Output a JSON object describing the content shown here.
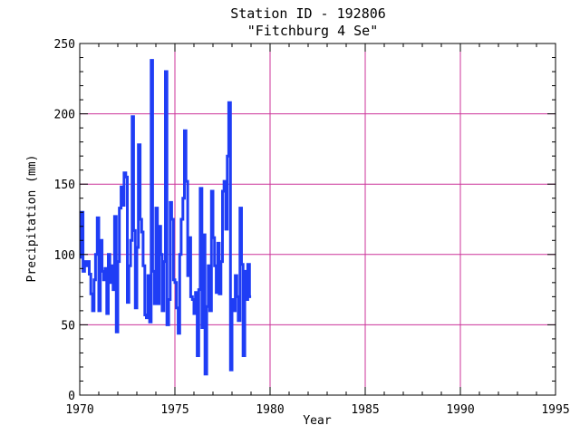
{
  "chart_data": {
    "type": "line",
    "title": "Station ID - 192806",
    "subtitle": "\"Fitchburg 4 Se\"",
    "xlabel": "Year",
    "ylabel": "Precipitation (mm)",
    "xlim": [
      1970,
      1995
    ],
    "ylim": [
      0,
      250
    ],
    "xticks": [
      1970,
      1975,
      1980,
      1985,
      1990,
      1995
    ],
    "yticks": [
      0,
      50,
      100,
      150,
      200,
      250
    ],
    "grid": true,
    "colors": {
      "series": "#1f3df5",
      "grid": "#cc3399",
      "axis": "#000000"
    },
    "series": [
      {
        "x": [
          1970.0,
          1970.08,
          1970.17,
          1970.25,
          1970.33,
          1970.42,
          1970.5,
          1970.58,
          1970.67,
          1970.75,
          1970.83,
          1970.92,
          1971.0,
          1971.08,
          1971.17,
          1971.25,
          1971.33,
          1971.42,
          1971.5,
          1971.58,
          1971.67,
          1971.75,
          1971.83,
          1971.92,
          1972.0,
          1972.08,
          1972.17,
          1972.25,
          1972.33,
          1972.42,
          1972.5,
          1972.58,
          1972.67,
          1972.75,
          1972.83,
          1972.92,
          1973.0,
          1973.08,
          1973.17,
          1973.25,
          1973.33,
          1973.42,
          1973.5,
          1973.58,
          1973.67,
          1973.75,
          1973.83,
          1973.92,
          1974.0,
          1974.08,
          1974.17,
          1974.25,
          1974.33,
          1974.42,
          1974.5,
          1974.58,
          1974.67,
          1974.75,
          1974.83,
          1974.92,
          1975.0,
          1975.08,
          1975.17,
          1975.25,
          1975.33,
          1975.42,
          1975.5,
          1975.58,
          1975.67,
          1975.75,
          1975.83,
          1975.92,
          1976.0,
          1976.08,
          1976.17,
          1976.25,
          1976.33,
          1976.42,
          1976.5,
          1976.58,
          1976.67,
          1976.75,
          1976.83,
          1976.92,
          1977.0,
          1977.08,
          1977.17,
          1977.25,
          1977.33,
          1977.42,
          1977.5,
          1977.58,
          1977.67,
          1977.75,
          1977.83,
          1977.92,
          1978.0,
          1978.08,
          1978.17,
          1978.25,
          1978.33,
          1978.42,
          1978.5,
          1978.58,
          1978.67,
          1978.75,
          1978.83,
          1978.92
        ],
        "values": [
          98,
          130,
          88,
          95,
          92,
          95,
          86,
          72,
          60,
          82,
          100,
          126,
          60,
          110,
          88,
          82,
          90,
          58,
          100,
          80,
          92,
          75,
          127,
          45,
          95,
          133,
          148,
          135,
          158,
          155,
          66,
          92,
          110,
          198,
          117,
          62,
          105,
          178,
          125,
          116,
          92,
          57,
          55,
          85,
          52,
          238,
          88,
          65,
          133,
          65,
          120,
          100,
          60,
          95,
          230,
          50,
          68,
          137,
          125,
          82,
          80,
          62,
          44,
          100,
          125,
          140,
          188,
          152,
          85,
          112,
          70,
          68,
          58,
          73,
          28,
          75,
          147,
          48,
          114,
          15,
          63,
          92,
          60,
          145,
          112,
          92,
          73,
          108,
          72,
          95,
          145,
          152,
          118,
          170,
          208,
          18,
          68,
          60,
          85,
          70,
          53,
          133,
          93,
          28,
          88,
          68,
          93,
          70
        ]
      }
    ]
  }
}
